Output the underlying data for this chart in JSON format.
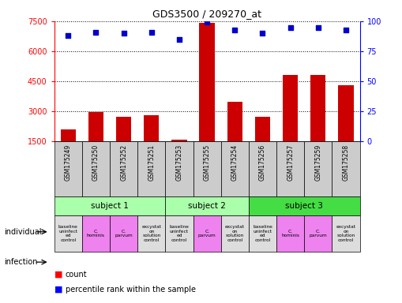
{
  "title": "GDS3500 / 209270_at",
  "samples": [
    "GSM175249",
    "GSM175250",
    "GSM175252",
    "GSM175251",
    "GSM175253",
    "GSM175255",
    "GSM175254",
    "GSM175256",
    "GSM175257",
    "GSM175259",
    "GSM175258"
  ],
  "counts": [
    2100,
    2950,
    2750,
    2800,
    1600,
    7400,
    3500,
    2750,
    4800,
    4800,
    4300
  ],
  "percentile_ranks": [
    88,
    91,
    90,
    91,
    85,
    99,
    93,
    90,
    95,
    95,
    93
  ],
  "ymin": 1500,
  "ymax": 7500,
  "yticks": [
    1500,
    3000,
    4500,
    6000,
    7500
  ],
  "y2ticks": [
    0,
    25,
    50,
    75,
    100
  ],
  "subjects": [
    {
      "label": "subject 1",
      "start": 0,
      "end": 4,
      "color": "#aaffaa"
    },
    {
      "label": "subject 2",
      "start": 4,
      "end": 7,
      "color": "#aaffaa"
    },
    {
      "label": "subject 3",
      "start": 7,
      "end": 11,
      "color": "#44dd44"
    }
  ],
  "infections": [
    {
      "label": "baseline\nuninfect\ned\ncontrol",
      "col": "#dddddd"
    },
    {
      "label": "C.\nhominis",
      "col": "#ee82ee"
    },
    {
      "label": "C.\nparvum",
      "col": "#ee82ee"
    },
    {
      "label": "excystat\non\nsolution\ncontrol",
      "col": "#dddddd"
    },
    {
      "label": "baseline\nuninfect\ned\ncontrol",
      "col": "#dddddd"
    },
    {
      "label": "C.\nparvum",
      "col": "#ee82ee"
    },
    {
      "label": "excystat\non\nsolution\ncontrol",
      "col": "#dddddd"
    },
    {
      "label": "baseline\nuninfect\ned\ncontrol",
      "col": "#dddddd"
    },
    {
      "label": "C.\nhominis",
      "col": "#ee82ee"
    },
    {
      "label": "C.\nparvum",
      "col": "#ee82ee"
    },
    {
      "label": "excystat\non\nsolution\ncontrol",
      "col": "#dddddd"
    }
  ],
  "bar_color": "#cc0000",
  "dot_color": "#0000cc",
  "sample_bg": "#cccccc",
  "left_label_individual": "individual",
  "left_label_infection": "infection",
  "legend_count": "count",
  "legend_pct": "percentile rank within the sample"
}
